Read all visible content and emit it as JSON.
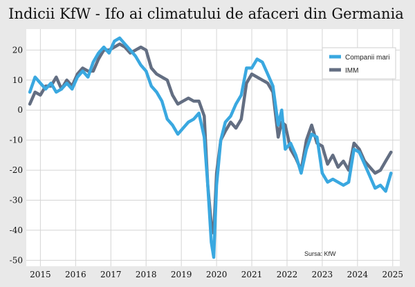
{
  "chart_data": {
    "type": "line",
    "title": "Indicii KfW - Ifo ai climatului de afaceri din Germania",
    "xlabel": "",
    "ylabel": "",
    "source": "Sursa: KfW",
    "ylim": [
      -52,
      27
    ],
    "xlim": [
      2014.6,
      2025.2
    ],
    "yticks": [
      20,
      10,
      0,
      -10,
      -20,
      -30,
      -40,
      -50
    ],
    "xticks": [
      2015,
      2016,
      2017,
      2018,
      2019,
      2020,
      2021,
      2022,
      2023,
      2024,
      2025
    ],
    "grid": true,
    "legend_position": "top-right",
    "colors": {
      "series_1": "#3aa8e0",
      "series_2": "#636e82",
      "background": "#e9e9e9",
      "plot": "#ffffff"
    },
    "series": [
      {
        "name": "Companii mari",
        "x": [
          2014.7,
          2014.85,
          2015.0,
          2015.15,
          2015.3,
          2015.45,
          2015.6,
          2015.75,
          2015.9,
          2016.05,
          2016.2,
          2016.35,
          2016.5,
          2016.65,
          2016.8,
          2016.95,
          2017.1,
          2017.25,
          2017.4,
          2017.55,
          2017.7,
          2017.85,
          2018.0,
          2018.15,
          2018.3,
          2018.45,
          2018.6,
          2018.75,
          2018.9,
          2019.05,
          2019.2,
          2019.35,
          2019.5,
          2019.65,
          2019.75,
          2019.85,
          2019.92,
          2020.0,
          2020.12,
          2020.25,
          2020.4,
          2020.55,
          2020.7,
          2020.85,
          2021.0,
          2021.15,
          2021.3,
          2021.45,
          2021.6,
          2021.75,
          2021.85,
          2021.95,
          2022.1,
          2022.25,
          2022.4,
          2022.55,
          2022.7,
          2022.85,
          2023.0,
          2023.15,
          2023.3,
          2023.45,
          2023.6,
          2023.75,
          2023.9,
          2024.05,
          2024.2,
          2024.35,
          2024.5,
          2024.65,
          2024.8,
          2024.95
        ],
        "values": [
          6,
          11,
          9,
          7,
          9,
          6,
          7,
          9,
          7,
          11,
          13,
          11,
          16,
          19,
          21,
          19,
          23,
          24,
          22,
          20,
          18,
          15,
          13,
          8,
          6,
          3,
          -3,
          -5,
          -8,
          -6,
          -4,
          -3,
          -1,
          -9,
          -25,
          -44,
          -49,
          -25,
          -10,
          -4,
          -2,
          2,
          5,
          14,
          14,
          17,
          16,
          12,
          8,
          -5,
          0,
          -13,
          -11,
          -15,
          -21,
          -13,
          -8,
          -9,
          -21,
          -24,
          -23,
          -24,
          -25,
          -24,
          -13,
          -14,
          -18,
          -22,
          -26,
          -25,
          -27,
          -21
        ]
      },
      {
        "name": "IMM",
        "x": [
          2014.7,
          2014.85,
          2015.0,
          2015.15,
          2015.3,
          2015.45,
          2015.6,
          2015.75,
          2015.9,
          2016.05,
          2016.2,
          2016.35,
          2016.5,
          2016.65,
          2016.8,
          2016.95,
          2017.1,
          2017.25,
          2017.4,
          2017.55,
          2017.7,
          2017.85,
          2018.0,
          2018.15,
          2018.3,
          2018.45,
          2018.6,
          2018.75,
          2018.9,
          2019.05,
          2019.2,
          2019.35,
          2019.5,
          2019.65,
          2019.75,
          2019.85,
          2019.92,
          2020.0,
          2020.12,
          2020.25,
          2020.4,
          2020.55,
          2020.7,
          2020.85,
          2021.0,
          2021.15,
          2021.3,
          2021.45,
          2021.6,
          2021.75,
          2021.85,
          2021.95,
          2022.1,
          2022.25,
          2022.4,
          2022.55,
          2022.7,
          2022.85,
          2023.0,
          2023.15,
          2023.3,
          2023.45,
          2023.6,
          2023.75,
          2023.9,
          2024.05,
          2024.2,
          2024.35,
          2024.5,
          2024.65,
          2024.8,
          2024.95
        ],
        "values": [
          2,
          6,
          5,
          8,
          8,
          11,
          7,
          10,
          8,
          12,
          14,
          13,
          13,
          17,
          20,
          20,
          21,
          22,
          21,
          19,
          20,
          21,
          20,
          14,
          12,
          11,
          10,
          5,
          2,
          3,
          4,
          3,
          3,
          -2,
          -25,
          -38,
          -41,
          -21,
          -10,
          -7,
          -4,
          -6,
          -3,
          9,
          12,
          11,
          10,
          9,
          6,
          -9,
          -4,
          -5,
          -13,
          -16,
          -20,
          -10,
          -5,
          -11,
          -12,
          -18,
          -15,
          -19,
          -17,
          -20,
          -11,
          -13,
          -17,
          -19,
          -21,
          -20,
          -17,
          -14
        ]
      }
    ]
  }
}
